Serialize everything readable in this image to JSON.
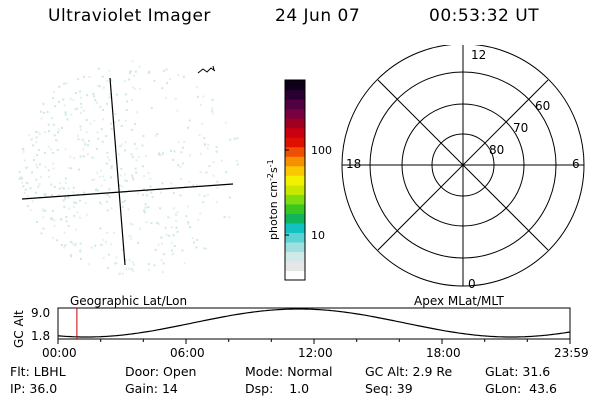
{
  "header": {
    "instrument": "Ultraviolet Imager",
    "date": "24 Jun 07",
    "time": "00:53:32 UT"
  },
  "colorbar": {
    "label_base": "photon cm",
    "label_exp1": "-2",
    "label_s": "s",
    "label_exp2": "-1",
    "ticks": [
      "100",
      "10"
    ],
    "colors": [
      "#fefefe",
      "#e6e6e6",
      "#cfe8e8",
      "#9ee0e0",
      "#5bd3d3",
      "#12c2c2",
      "#10b45a",
      "#3ac820",
      "#7fdc10",
      "#c8e800",
      "#f2f200",
      "#fac800",
      "#f69000",
      "#ef4f00",
      "#e01000",
      "#c80010",
      "#a00020",
      "#780040",
      "#500040",
      "#2a0030",
      "#0e0018"
    ]
  },
  "polar_plot": {
    "mlt_labels": {
      "top": "12",
      "left": "18",
      "right": "6",
      "bottom": "0"
    },
    "lat_labels": [
      "60",
      "70",
      "80"
    ]
  },
  "timeline": {
    "left_title": "Geographic Lat/Lon",
    "right_title": "Apex MLat/MLT",
    "y_axis_label": "GC Alt",
    "y_ticks": [
      "9.0",
      "1.8"
    ],
    "x_ticks": [
      "00:00",
      "06:00",
      "12:00",
      "18:00",
      "23:59"
    ],
    "marker_time_fraction": 0.037
  },
  "info": {
    "flt_label": "Flt:",
    "flt_value": "LBHL",
    "door_label": "Door:",
    "door_value": "Open",
    "mode_label": "Mode:",
    "mode_value": "Normal",
    "gcalt_label": "GC Alt:",
    "gcalt_value": "2.9 Re",
    "glat_label": "GLat:",
    "glat_value": "31.6",
    "ip_label": "IP:",
    "ip_value": "36.0",
    "gain_label": "Gain:",
    "gain_value": "14",
    "dsp_label": "Dsp:",
    "dsp_value": "1.0",
    "seq_label": "Seq:",
    "seq_value": "39",
    "glon_label": "GLon:",
    "glon_value": "43.6"
  }
}
